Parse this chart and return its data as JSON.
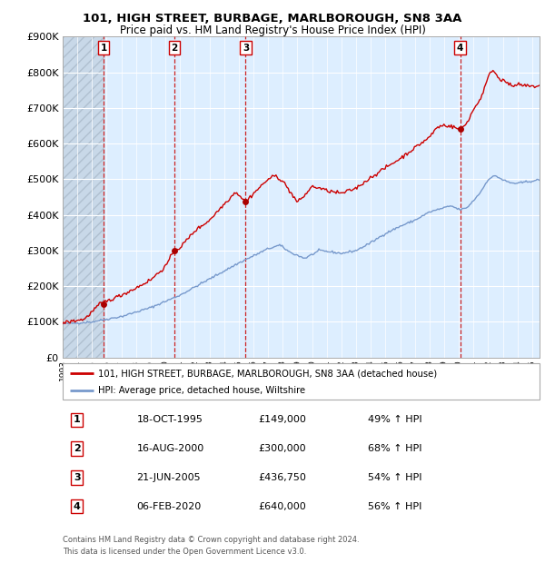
{
  "title1": "101, HIGH STREET, BURBAGE, MARLBOROUGH, SN8 3AA",
  "title2": "Price paid vs. HM Land Registry's House Price Index (HPI)",
  "legend_line1": "101, HIGH STREET, BURBAGE, MARLBOROUGH, SN8 3AA (detached house)",
  "legend_line2": "HPI: Average price, detached house, Wiltshire",
  "transactions": [
    {
      "num": 1,
      "date": "18-OCT-1995",
      "date_x": 1995.79,
      "price": 149000,
      "pct": "49%",
      "dir": "↑"
    },
    {
      "num": 2,
      "date": "16-AUG-2000",
      "date_x": 2000.62,
      "price": 300000,
      "pct": "68%",
      "dir": "↑"
    },
    {
      "num": 3,
      "date": "21-JUN-2005",
      "date_x": 2005.47,
      "price": 436750,
      "pct": "54%",
      "dir": "↑"
    },
    {
      "num": 4,
      "date": "06-FEB-2020",
      "date_x": 2020.09,
      "price": 640000,
      "pct": "56%",
      "dir": "↑"
    }
  ],
  "footer1": "Contains HM Land Registry data © Crown copyright and database right 2024.",
  "footer2": "This data is licensed under the Open Government Licence v3.0.",
  "xmin": 1993.0,
  "xmax": 2025.5,
  "ymin": 0,
  "ymax": 900000,
  "yticks": [
    0,
    100000,
    200000,
    300000,
    400000,
    500000,
    600000,
    700000,
    800000,
    900000
  ],
  "hatch_xmax": 1995.79,
  "red_line_color": "#cc0000",
  "blue_line_color": "#7799cc",
  "dot_color": "#aa0000",
  "bg_color": "#ddeeff",
  "grid_color": "#ffffff",
  "vline_color": "#cc2222"
}
